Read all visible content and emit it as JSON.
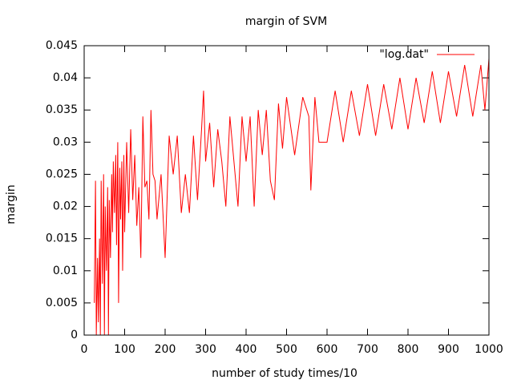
{
  "chart_data": {
    "type": "line",
    "title": "margin of SVM",
    "x_label": "number of study times/10",
    "y_label": "margin",
    "x": [
      25,
      28,
      30,
      33,
      35,
      38,
      40,
      42,
      45,
      48,
      50,
      52,
      55,
      58,
      60,
      62,
      65,
      68,
      70,
      72,
      75,
      78,
      80,
      83,
      85,
      88,
      90,
      93,
      95,
      98,
      100,
      105,
      110,
      115,
      120,
      125,
      130,
      135,
      140,
      145,
      150,
      155,
      160,
      165,
      170,
      175,
      180,
      190,
      200,
      210,
      220,
      230,
      240,
      250,
      260,
      270,
      280,
      290,
      295,
      300,
      310,
      320,
      330,
      340,
      350,
      360,
      370,
      380,
      390,
      400,
      410,
      420,
      430,
      440,
      450,
      460,
      470,
      480,
      490,
      500,
      520,
      540,
      555,
      560,
      570,
      580,
      600,
      620,
      640,
      660,
      680,
      700,
      720,
      740,
      760,
      780,
      800,
      820,
      840,
      860,
      880,
      900,
      920,
      940,
      960,
      980,
      990,
      1000
    ],
    "series": [
      {
        "name": "\"log.dat\"",
        "color": "#ff0000",
        "values": [
          0.005,
          0.024,
          0.0,
          0.012,
          0.002,
          0.015,
          0.0,
          0.024,
          0.008,
          0.025,
          0.0,
          0.02,
          0.01,
          0.023,
          0.0,
          0.021,
          0.012,
          0.025,
          0.016,
          0.027,
          0.019,
          0.028,
          0.014,
          0.03,
          0.005,
          0.026,
          0.018,
          0.027,
          0.01,
          0.028,
          0.016,
          0.03,
          0.019,
          0.032,
          0.021,
          0.028,
          0.017,
          0.023,
          0.012,
          0.034,
          0.023,
          0.024,
          0.018,
          0.035,
          0.025,
          0.024,
          0.018,
          0.025,
          0.012,
          0.031,
          0.025,
          0.031,
          0.019,
          0.025,
          0.019,
          0.031,
          0.021,
          0.032,
          0.038,
          0.027,
          0.033,
          0.023,
          0.032,
          0.027,
          0.02,
          0.034,
          0.027,
          0.02,
          0.034,
          0.027,
          0.034,
          0.02,
          0.035,
          0.028,
          0.035,
          0.024,
          0.021,
          0.036,
          0.029,
          0.037,
          0.028,
          0.037,
          0.034,
          0.0225,
          0.037,
          0.03,
          0.03,
          0.038,
          0.03,
          0.038,
          0.031,
          0.039,
          0.031,
          0.039,
          0.032,
          0.04,
          0.032,
          0.04,
          0.033,
          0.041,
          0.033,
          0.041,
          0.034,
          0.042,
          0.034,
          0.042,
          0.035,
          0.043
        ]
      }
    ],
    "xlim": [
      0,
      1000
    ],
    "xticks": [
      0,
      100,
      200,
      300,
      400,
      500,
      600,
      700,
      800,
      900,
      1000
    ],
    "ylim": [
      0,
      0.045
    ],
    "yticks": [
      0,
      0.005,
      0.01,
      0.015,
      0.02,
      0.025,
      0.03,
      0.035,
      0.04,
      0.045
    ],
    "legend": "top right",
    "grid": false
  }
}
